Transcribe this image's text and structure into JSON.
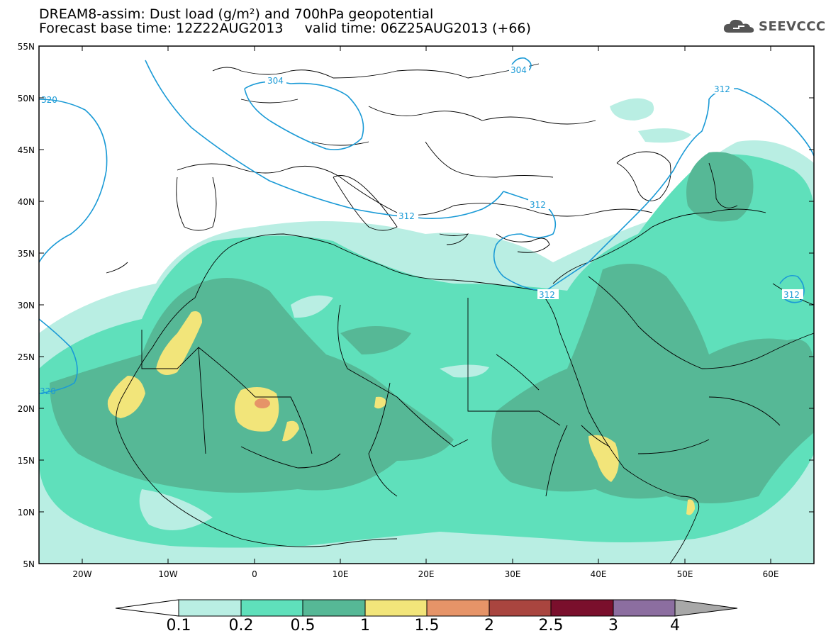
{
  "title": {
    "line1": "DREAM8-assim: Dust load (g/m²) and 700hPa geopotential",
    "line2": "Forecast base time: 12Z22AUG2013     valid time: 06Z25AUG2013 (+66)"
  },
  "logo": {
    "text": "SEEVCCC",
    "icon": "cloud-logo-icon"
  },
  "axes": {
    "lat_labels": [
      "55N",
      "50N",
      "45N",
      "40N",
      "35N",
      "30N",
      "25N",
      "20N",
      "15N",
      "10N",
      "5N"
    ],
    "lon_labels": [
      "20W",
      "10W",
      "0",
      "10E",
      "20E",
      "30E",
      "40E",
      "50E",
      "60E"
    ]
  },
  "contour_labels": [
    "304",
    "304",
    "320",
    "312",
    "312",
    "312",
    "312",
    "312",
    "320"
  ],
  "colorbar": {
    "labels": [
      "0.1",
      "0.2",
      "0.5",
      "1",
      "1.5",
      "2",
      "2.5",
      "3",
      "4"
    ],
    "colors": [
      "#ffffff",
      "#b9eee3",
      "#5fe0bb",
      "#56b896",
      "#f2e57a",
      "#e69468",
      "#a9453f",
      "#7a0f2c",
      "#8c6ea0",
      "#a8a8a8"
    ]
  },
  "map_colors": {
    "level1": "#b9eee3",
    "level2": "#5fe0bb",
    "level3": "#56b896",
    "level4": "#f2e57a",
    "level5": "#e69468",
    "contour": "#1a9ad6"
  }
}
